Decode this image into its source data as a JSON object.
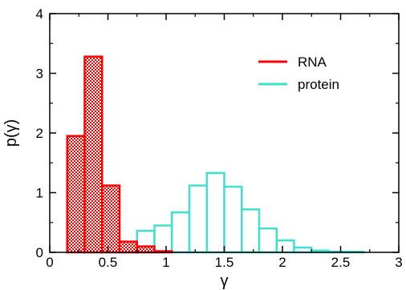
{
  "chart_data": {
    "type": "bar",
    "subtype": "histogram",
    "xlabel": "γ",
    "ylabel": "p(γ)",
    "xlim": [
      0,
      3
    ],
    "ylim": [
      0,
      4
    ],
    "x_ticks": [
      "0",
      "0.5",
      "1",
      "1.5",
      "2",
      "2.5",
      "3"
    ],
    "y_ticks": [
      "0",
      "1",
      "2",
      "3",
      "4"
    ],
    "grid": false,
    "legend_position": "top-right",
    "series": [
      {
        "name": "RNA",
        "color": "#ff0000",
        "fill": "hatched",
        "bins": [
          {
            "x0": 0.15,
            "x1": 0.3,
            "value": 1.95
          },
          {
            "x0": 0.3,
            "x1": 0.45,
            "value": 3.28
          },
          {
            "x0": 0.45,
            "x1": 0.6,
            "value": 1.12
          },
          {
            "x0": 0.6,
            "x1": 0.75,
            "value": 0.18
          },
          {
            "x0": 0.75,
            "x1": 0.9,
            "value": 0.1
          },
          {
            "x0": 0.9,
            "x1": 1.05,
            "value": 0.02
          }
        ]
      },
      {
        "name": "protein",
        "color": "#40e0d0",
        "fill": "none",
        "bins": [
          {
            "x0": 0.15,
            "x1": 0.3,
            "value": 0.0
          },
          {
            "x0": 0.3,
            "x1": 0.45,
            "value": 0.02
          },
          {
            "x0": 0.45,
            "x1": 0.6,
            "value": 0.05
          },
          {
            "x0": 0.6,
            "x1": 0.75,
            "value": 0.12
          },
          {
            "x0": 0.75,
            "x1": 0.9,
            "value": 0.36
          },
          {
            "x0": 0.9,
            "x1": 1.05,
            "value": 0.45
          },
          {
            "x0": 1.05,
            "x1": 1.2,
            "value": 0.67
          },
          {
            "x0": 1.2,
            "x1": 1.35,
            "value": 1.12
          },
          {
            "x0": 1.35,
            "x1": 1.5,
            "value": 1.33
          },
          {
            "x0": 1.5,
            "x1": 1.65,
            "value": 1.1
          },
          {
            "x0": 1.65,
            "x1": 1.8,
            "value": 0.72
          },
          {
            "x0": 1.8,
            "x1": 1.95,
            "value": 0.4
          },
          {
            "x0": 1.95,
            "x1": 2.1,
            "value": 0.2
          },
          {
            "x0": 2.1,
            "x1": 2.25,
            "value": 0.08
          },
          {
            "x0": 2.25,
            "x1": 2.4,
            "value": 0.03
          },
          {
            "x0": 2.4,
            "x1": 2.55,
            "value": 0.01
          },
          {
            "x0": 2.55,
            "x1": 2.7,
            "value": 0.01
          },
          {
            "x0": 2.7,
            "x1": 2.85,
            "value": 0.0
          },
          {
            "x0": 2.85,
            "x1": 3.0,
            "value": 0.0
          }
        ]
      }
    ]
  }
}
